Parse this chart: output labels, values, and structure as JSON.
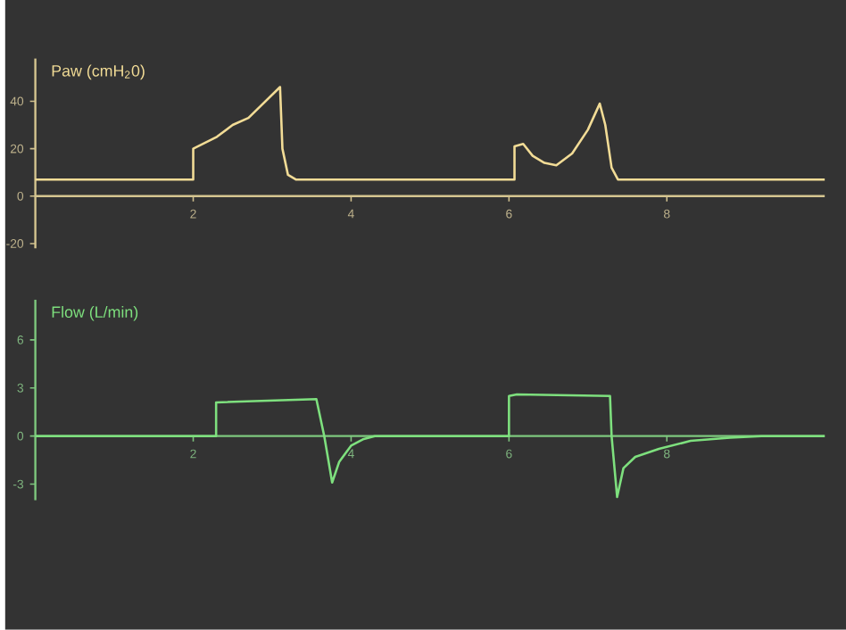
{
  "chart_data": [
    {
      "type": "line",
      "ylabel": "Paw (cmH$_{2}$0)",
      "xlim": [
        0,
        10
      ],
      "ylim": [
        -22,
        58
      ],
      "xticks": [
        2,
        4,
        6,
        8
      ],
      "yticks": [
        -20,
        0,
        20,
        40
      ],
      "series": [
        {
          "color": "#f2dc96",
          "x": [
            0,
            2.0,
            2.0,
            2.3,
            2.5,
            2.7,
            3.1,
            3.13,
            3.2,
            3.3,
            6.07,
            6.07,
            6.18,
            6.3,
            6.45,
            6.6,
            6.8,
            7.0,
            7.15,
            7.22,
            7.3,
            7.38,
            10
          ],
          "values": [
            7,
            7,
            20,
            25,
            30,
            33,
            46,
            20,
            9,
            7,
            7,
            21,
            22,
            17,
            14,
            13,
            18,
            28,
            39,
            30,
            12,
            7,
            7
          ]
        }
      ]
    },
    {
      "type": "line",
      "ylabel": "Flow (L/min)",
      "xlim": [
        0,
        10
      ],
      "ylim": [
        -4,
        8.5
      ],
      "xticks": [
        2,
        4,
        6,
        8
      ],
      "yticks": [
        -3,
        0,
        3,
        6
      ],
      "series": [
        {
          "color": "#7ee07e",
          "x": [
            0,
            2.29,
            2.29,
            3.56,
            3.66,
            3.76,
            3.85,
            4.0,
            4.15,
            4.3,
            6.0,
            6.0,
            6.1,
            7.28,
            7.3,
            7.37,
            7.45,
            7.6,
            7.9,
            8.3,
            8.8,
            9.2,
            10
          ],
          "values": [
            0,
            0,
            2.1,
            2.3,
            0,
            -2.9,
            -1.6,
            -0.6,
            -0.2,
            0,
            0,
            2.5,
            2.6,
            2.5,
            0,
            -3.8,
            -2.0,
            -1.3,
            -0.8,
            -0.3,
            -0.1,
            0,
            0
          ]
        }
      ]
    }
  ]
}
